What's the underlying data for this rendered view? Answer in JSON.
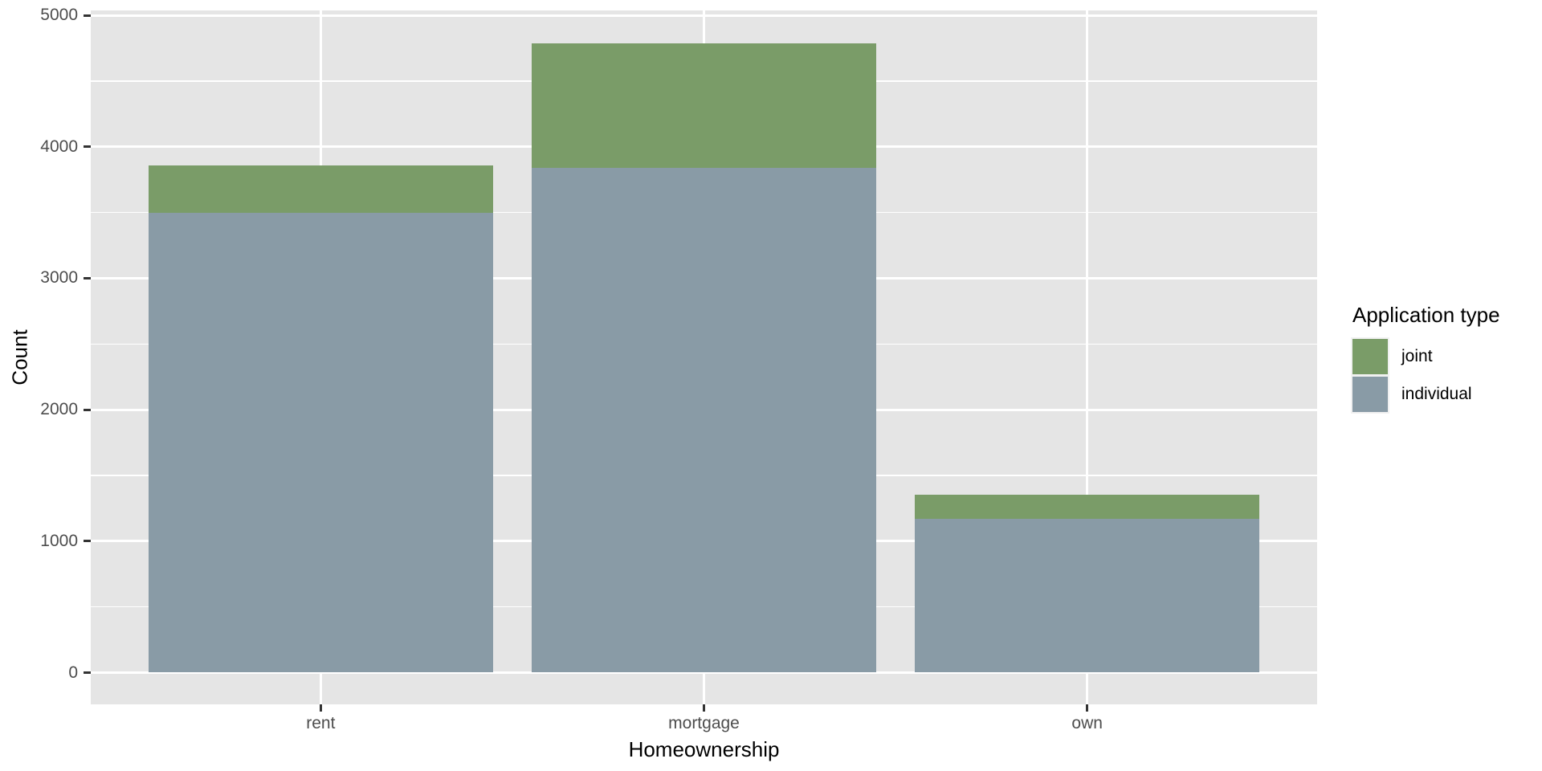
{
  "chart_data": {
    "type": "bar",
    "stacked": true,
    "categories": [
      "rent",
      "mortgage",
      "own"
    ],
    "series": [
      {
        "name": "joint",
        "color": "#7A9C68",
        "values": [
          362,
          950,
          183
        ]
      },
      {
        "name": "individual",
        "color": "#899BA6",
        "values": [
          3496,
          3839,
          1170
        ]
      }
    ],
    "title": "",
    "xlabel": "Homeownership",
    "ylabel": "Count",
    "ylim": [
      0,
      5000
    ],
    "yticks": [
      0,
      1000,
      2000,
      3000,
      4000,
      5000
    ],
    "yticks_minor": [
      500,
      1500,
      2500,
      3500,
      4500
    ],
    "legend_title": "Application type",
    "legend_position": "right",
    "grid": true,
    "panel_bg": "#E5E5E5",
    "grid_color": "#FFFFFF",
    "tick_label_color": "#4D4D4D",
    "axis_title_color": "#000000"
  }
}
